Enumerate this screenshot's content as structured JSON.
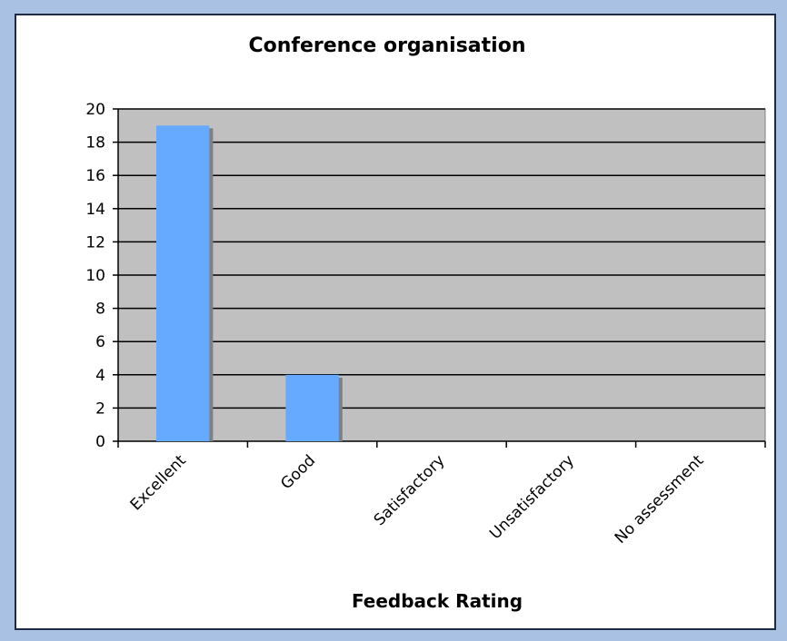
{
  "chart_data": {
    "type": "bar",
    "title": "Conference organisation",
    "xlabel": "Feedback Rating",
    "ylabel": "",
    "categories": [
      "Excellent",
      "Good",
      "Satisfactory",
      "Unsatisfactory",
      "No assessment"
    ],
    "values": [
      19,
      4,
      0,
      0,
      0
    ],
    "ylim": [
      0,
      20
    ],
    "yticks": [
      "0",
      "2",
      "4",
      "6",
      "8",
      "10",
      "12",
      "14",
      "16",
      "18",
      "20"
    ],
    "grid": true,
    "legend": "none",
    "colors": {
      "bar": "#66aaff",
      "bar_shadow": "#808080",
      "plot_background": "#c0c0c0",
      "gridline": "#000000",
      "frame": "#a9c1e2"
    }
  }
}
